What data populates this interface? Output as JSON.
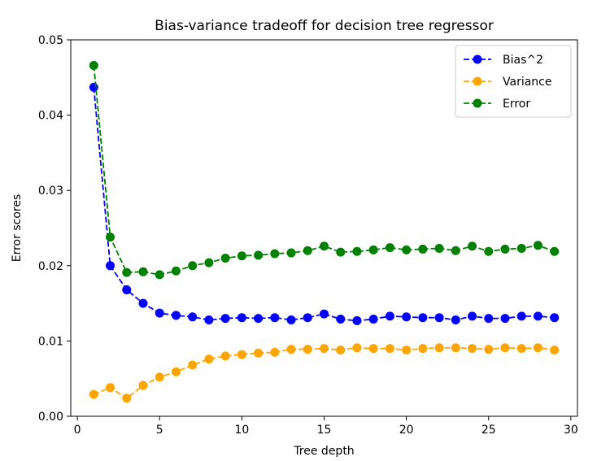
{
  "chart_data": {
    "type": "line",
    "title": "Bias-variance tradeoff for decision tree regressor",
    "xlabel": "Tree depth",
    "ylabel": "Error scores",
    "xlim": [
      -0.4,
      30.4
    ],
    "ylim": [
      0.0,
      0.05
    ],
    "xticks": [
      0,
      5,
      10,
      15,
      20,
      25,
      30
    ],
    "xtick_labels": [
      "0",
      "5",
      "10",
      "15",
      "20",
      "25",
      "30"
    ],
    "yticks": [
      0.0,
      0.01,
      0.02,
      0.03,
      0.04,
      0.05
    ],
    "ytick_labels": [
      "0.00",
      "0.01",
      "0.02",
      "0.03",
      "0.04",
      "0.05"
    ],
    "grid": false,
    "legend_position": "top-right",
    "x": [
      1,
      2,
      3,
      4,
      5,
      6,
      7,
      8,
      9,
      10,
      11,
      12,
      13,
      14,
      15,
      16,
      17,
      18,
      19,
      20,
      21,
      22,
      23,
      24,
      25,
      26,
      27,
      28,
      29
    ],
    "series": [
      {
        "name": "Bias^2",
        "color": "#0000ff",
        "line_style": "dashed",
        "marker": "circle",
        "values": [
          0.0437,
          0.02,
          0.0168,
          0.015,
          0.0137,
          0.0134,
          0.0132,
          0.0128,
          0.013,
          0.0131,
          0.013,
          0.0131,
          0.0128,
          0.0131,
          0.0136,
          0.0129,
          0.0127,
          0.0129,
          0.0133,
          0.0132,
          0.0131,
          0.0131,
          0.0128,
          0.0133,
          0.013,
          0.013,
          0.0133,
          0.0133,
          0.0131
        ]
      },
      {
        "name": "Variance",
        "color": "#ffa500",
        "line_style": "dashed",
        "marker": "circle",
        "values": [
          0.0029,
          0.0038,
          0.0024,
          0.0041,
          0.0052,
          0.0059,
          0.0068,
          0.0076,
          0.008,
          0.0082,
          0.0084,
          0.0085,
          0.0089,
          0.0089,
          0.009,
          0.0088,
          0.0091,
          0.009,
          0.009,
          0.0088,
          0.009,
          0.0091,
          0.0091,
          0.009,
          0.0089,
          0.0091,
          0.009,
          0.0091,
          0.0088
        ]
      },
      {
        "name": "Error",
        "color": "#008000",
        "line_style": "dashed",
        "marker": "circle",
        "values": [
          0.0466,
          0.0238,
          0.0191,
          0.0192,
          0.0188,
          0.0193,
          0.02,
          0.0204,
          0.021,
          0.0213,
          0.0214,
          0.0216,
          0.0217,
          0.022,
          0.0226,
          0.0218,
          0.0219,
          0.0221,
          0.0224,
          0.0221,
          0.0222,
          0.0223,
          0.022,
          0.0226,
          0.0219,
          0.0222,
          0.0223,
          0.0227,
          0.0219
        ]
      }
    ]
  }
}
